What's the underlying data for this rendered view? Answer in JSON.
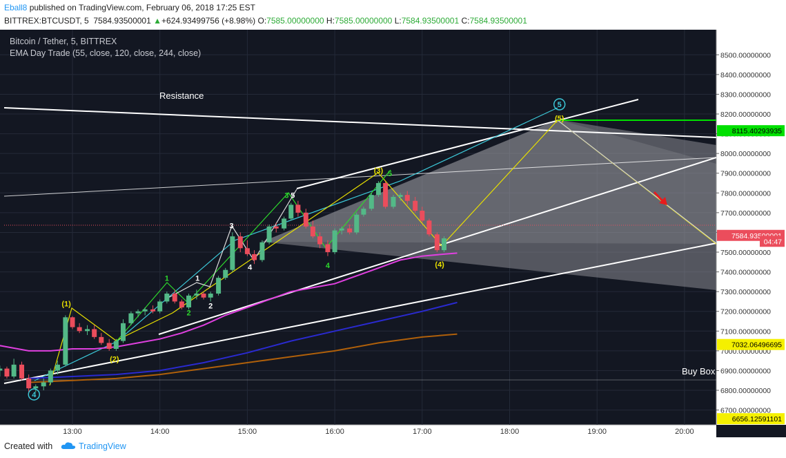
{
  "header": {
    "author": "Eball8",
    "published": " published on TradingView.com, February 06, 2018 17:25 EST",
    "symbol": "BITTREX:BTCUSDT, 5",
    "last": "7584.93500001",
    "change_arrow": "▲",
    "change": "+624.93499756 (+8.98%)",
    "o_label": "O:",
    "o": "7585.00000000",
    "h_label": "H:",
    "h": "7585.00000000",
    "l_label": "L:",
    "l": "7584.93500001",
    "c_label": "C:",
    "c": "7584.93500001"
  },
  "legend": {
    "title": "Bitcoin / Tether, 5, BITTREX",
    "indicator": "EMA Day Trade (55, close, 120, close, 244, close)"
  },
  "footer": {
    "created": "Created with",
    "brand": "TradingView",
    "logo_icon": "cloud-logo-icon"
  },
  "colors": {
    "bg": "#131722",
    "up": "#53b987",
    "down": "#eb4d5c",
    "white": "#ffffff",
    "ema55": "#e040e0",
    "ema120": "#2a2ad0",
    "ema244": "#b0600a",
    "green_level": "#00e000",
    "yellow": "#e8e000",
    "cyan": "#3cc8d8",
    "red_arrow": "#e81c1c"
  },
  "chart_data": {
    "type": "candlestick",
    "y_ticks": [
      "8500.00000000",
      "8400.00000000",
      "8300.00000000",
      "8200.00000000",
      "8100.00000000",
      "8000.00000000",
      "7900.00000000",
      "7800.00000000",
      "7700.00000000",
      "7600.00000000",
      "7500.00000000",
      "7400.00000000",
      "7300.00000000",
      "7200.00000000",
      "7100.00000000",
      "7000.00000000",
      "6900.00000000",
      "6800.00000000",
      "6700.00000000"
    ],
    "x_ticks": [
      "13:00",
      "14:00",
      "15:00",
      "16:00",
      "17:00",
      "18:00",
      "19:00",
      "20:00"
    ],
    "price_labels": [
      {
        "text": "8115.40293935",
        "price": 8115.4,
        "bg": "#00e000",
        "fg": "#000000"
      },
      {
        "text": "7584.93500001",
        "price": 7584.9,
        "bg": "#eb4d5c",
        "fg": "#ffffff"
      },
      {
        "text": "04:47",
        "price": 7555,
        "bg": "#eb4d5c",
        "fg": "#ffffff"
      },
      {
        "text": "7032.06496695",
        "price": 7032.1,
        "bg": "#f5f000",
        "fg": "#000000"
      },
      {
        "text": "6656.12591101",
        "price": 6656.1,
        "bg": "#f5f000",
        "fg": "#000000"
      }
    ],
    "annotations": {
      "resistance": "Resistance",
      "buy_box": "Buy Box"
    },
    "wave_labels": [
      {
        "text": "(1)",
        "t": 12.93,
        "p": 7225,
        "color": "yellow"
      },
      {
        "text": "(2)",
        "t": 13.48,
        "p": 6945,
        "color": "yellow"
      },
      {
        "text": "(3)",
        "t": 16.5,
        "p": 7900,
        "color": "yellow"
      },
      {
        "text": "(4)",
        "t": 17.2,
        "p": 7425,
        "color": "yellow"
      },
      {
        "text": "(5)",
        "t": 18.57,
        "p": 8165,
        "color": "yellow"
      },
      {
        "text": "5",
        "t": 18.57,
        "p": 8235,
        "color": "cyan",
        "circle": true
      },
      {
        "text": "4",
        "t": 12.56,
        "p": 6765,
        "color": "cyan",
        "circle": true
      },
      {
        "text": "1",
        "t": 14.08,
        "p": 7355,
        "color": "green"
      },
      {
        "text": "2",
        "t": 14.33,
        "p": 7180,
        "color": "green"
      },
      {
        "text": "3",
        "t": 15.45,
        "p": 7775,
        "color": "green"
      },
      {
        "text": "4",
        "t": 15.92,
        "p": 7420,
        "color": "green"
      },
      {
        "text": "5",
        "t": 16.63,
        "p": 7885,
        "color": "green"
      },
      {
        "text": "1",
        "t": 14.43,
        "p": 7355,
        "color": "white"
      },
      {
        "text": "2",
        "t": 14.58,
        "p": 7215,
        "color": "white"
      },
      {
        "text": "3",
        "t": 14.82,
        "p": 7620,
        "color": "white"
      },
      {
        "text": "4",
        "t": 15.03,
        "p": 7410,
        "color": "white"
      },
      {
        "text": "5",
        "t": 15.52,
        "p": 7775,
        "color": "white"
      }
    ],
    "candles": [
      [
        12.0,
        6890,
        6930,
        6860,
        6920
      ],
      [
        12.08,
        6920,
        6935,
        6890,
        6900
      ],
      [
        12.17,
        6900,
        6925,
        6870,
        6910
      ],
      [
        12.25,
        6910,
        6920,
        6860,
        6870
      ],
      [
        12.33,
        6870,
        6960,
        6860,
        6930
      ],
      [
        12.42,
        6930,
        6945,
        6850,
        6860
      ],
      [
        12.5,
        6860,
        6880,
        6790,
        6810
      ],
      [
        12.58,
        6810,
        6830,
        6790,
        6820
      ],
      [
        12.67,
        6820,
        6860,
        6800,
        6840
      ],
      [
        12.75,
        6840,
        6910,
        6830,
        6900
      ],
      [
        12.83,
        6900,
        6950,
        6880,
        6930
      ],
      [
        12.92,
        6930,
        7180,
        6920,
        7170
      ],
      [
        13.0,
        7170,
        7175,
        7110,
        7120
      ],
      [
        13.08,
        7120,
        7140,
        7090,
        7100
      ],
      [
        13.17,
        7100,
        7130,
        7080,
        7110
      ],
      [
        13.25,
        7110,
        7130,
        7060,
        7070
      ],
      [
        13.33,
        7070,
        7090,
        7030,
        7040
      ],
      [
        13.42,
        7040,
        7060,
        7000,
        7010
      ],
      [
        13.5,
        7010,
        7060,
        7000,
        7050
      ],
      [
        13.58,
        7050,
        7160,
        7040,
        7140
      ],
      [
        13.67,
        7140,
        7200,
        7130,
        7190
      ],
      [
        13.75,
        7190,
        7210,
        7170,
        7200
      ],
      [
        13.83,
        7200,
        7220,
        7180,
        7210
      ],
      [
        13.92,
        7210,
        7230,
        7190,
        7200
      ],
      [
        14.0,
        7200,
        7260,
        7190,
        7250
      ],
      [
        14.08,
        7250,
        7300,
        7240,
        7290
      ],
      [
        14.17,
        7290,
        7310,
        7240,
        7250
      ],
      [
        14.25,
        7250,
        7260,
        7210,
        7220
      ],
      [
        14.33,
        7220,
        7290,
        7210,
        7280
      ],
      [
        14.42,
        7280,
        7310,
        7260,
        7290
      ],
      [
        14.5,
        7290,
        7300,
        7260,
        7270
      ],
      [
        14.58,
        7270,
        7300,
        7250,
        7290
      ],
      [
        14.67,
        7290,
        7380,
        7280,
        7370
      ],
      [
        14.75,
        7370,
        7420,
        7360,
        7410
      ],
      [
        14.83,
        7410,
        7600,
        7400,
        7580
      ],
      [
        14.92,
        7580,
        7600,
        7500,
        7520
      ],
      [
        15.0,
        7520,
        7560,
        7480,
        7490
      ],
      [
        15.08,
        7490,
        7510,
        7440,
        7460
      ],
      [
        15.17,
        7460,
        7560,
        7450,
        7550
      ],
      [
        15.25,
        7550,
        7640,
        7540,
        7630
      ],
      [
        15.33,
        7630,
        7650,
        7600,
        7620
      ],
      [
        15.42,
        7620,
        7680,
        7610,
        7670
      ],
      [
        15.5,
        7670,
        7750,
        7660,
        7740
      ],
      [
        15.58,
        7740,
        7760,
        7680,
        7700
      ],
      [
        15.67,
        7700,
        7720,
        7620,
        7630
      ],
      [
        15.75,
        7630,
        7660,
        7570,
        7580
      ],
      [
        15.83,
        7580,
        7600,
        7520,
        7540
      ],
      [
        15.92,
        7540,
        7560,
        7480,
        7500
      ],
      [
        16.0,
        7500,
        7620,
        7490,
        7610
      ],
      [
        16.08,
        7610,
        7630,
        7590,
        7620
      ],
      [
        16.17,
        7620,
        7640,
        7590,
        7600
      ],
      [
        16.25,
        7600,
        7700,
        7590,
        7690
      ],
      [
        16.33,
        7690,
        7730,
        7680,
        7720
      ],
      [
        16.42,
        7720,
        7800,
        7710,
        7790
      ],
      [
        16.5,
        7790,
        7860,
        7780,
        7850
      ],
      [
        16.58,
        7850,
        7860,
        7720,
        7730
      ],
      [
        16.67,
        7730,
        7790,
        7720,
        7780
      ],
      [
        16.75,
        7780,
        7800,
        7760,
        7790
      ],
      [
        16.83,
        7790,
        7810,
        7740,
        7760
      ],
      [
        16.92,
        7760,
        7780,
        7700,
        7710
      ],
      [
        17.0,
        7710,
        7730,
        7650,
        7660
      ],
      [
        17.08,
        7660,
        7670,
        7580,
        7590
      ],
      [
        17.17,
        7590,
        7600,
        7500,
        7510
      ],
      [
        17.25,
        7510,
        7580,
        7500,
        7570
      ]
    ],
    "ema55": [
      [
        12.0,
        7040
      ],
      [
        12.25,
        7020
      ],
      [
        12.5,
        7000
      ],
      [
        12.75,
        7000
      ],
      [
        13.0,
        7010
      ],
      [
        13.25,
        7010
      ],
      [
        13.5,
        7020
      ],
      [
        13.75,
        7040
      ],
      [
        14.0,
        7060
      ],
      [
        14.25,
        7090
      ],
      [
        14.5,
        7130
      ],
      [
        14.75,
        7180
      ],
      [
        15.0,
        7220
      ],
      [
        15.25,
        7260
      ],
      [
        15.5,
        7300
      ],
      [
        15.75,
        7320
      ],
      [
        16.0,
        7340
      ],
      [
        16.25,
        7380
      ],
      [
        16.5,
        7420
      ],
      [
        16.75,
        7460
      ],
      [
        17.0,
        7480
      ],
      [
        17.25,
        7490
      ],
      [
        17.4,
        7495
      ]
    ],
    "ema120": [
      [
        12.5,
        6860
      ],
      [
        13.0,
        6870
      ],
      [
        13.5,
        6880
      ],
      [
        14.0,
        6900
      ],
      [
        14.5,
        6940
      ],
      [
        15.0,
        6990
      ],
      [
        15.5,
        7050
      ],
      [
        16.0,
        7100
      ],
      [
        16.5,
        7150
      ],
      [
        17.0,
        7200
      ],
      [
        17.4,
        7245
      ]
    ],
    "ema244": [
      [
        12.5,
        6840
      ],
      [
        13.0,
        6850
      ],
      [
        13.5,
        6860
      ],
      [
        14.0,
        6880
      ],
      [
        14.5,
        6910
      ],
      [
        15.0,
        6940
      ],
      [
        15.5,
        6970
      ],
      [
        16.0,
        7000
      ],
      [
        16.5,
        7040
      ],
      [
        17.0,
        7070
      ],
      [
        17.4,
        7085
      ]
    ]
  }
}
